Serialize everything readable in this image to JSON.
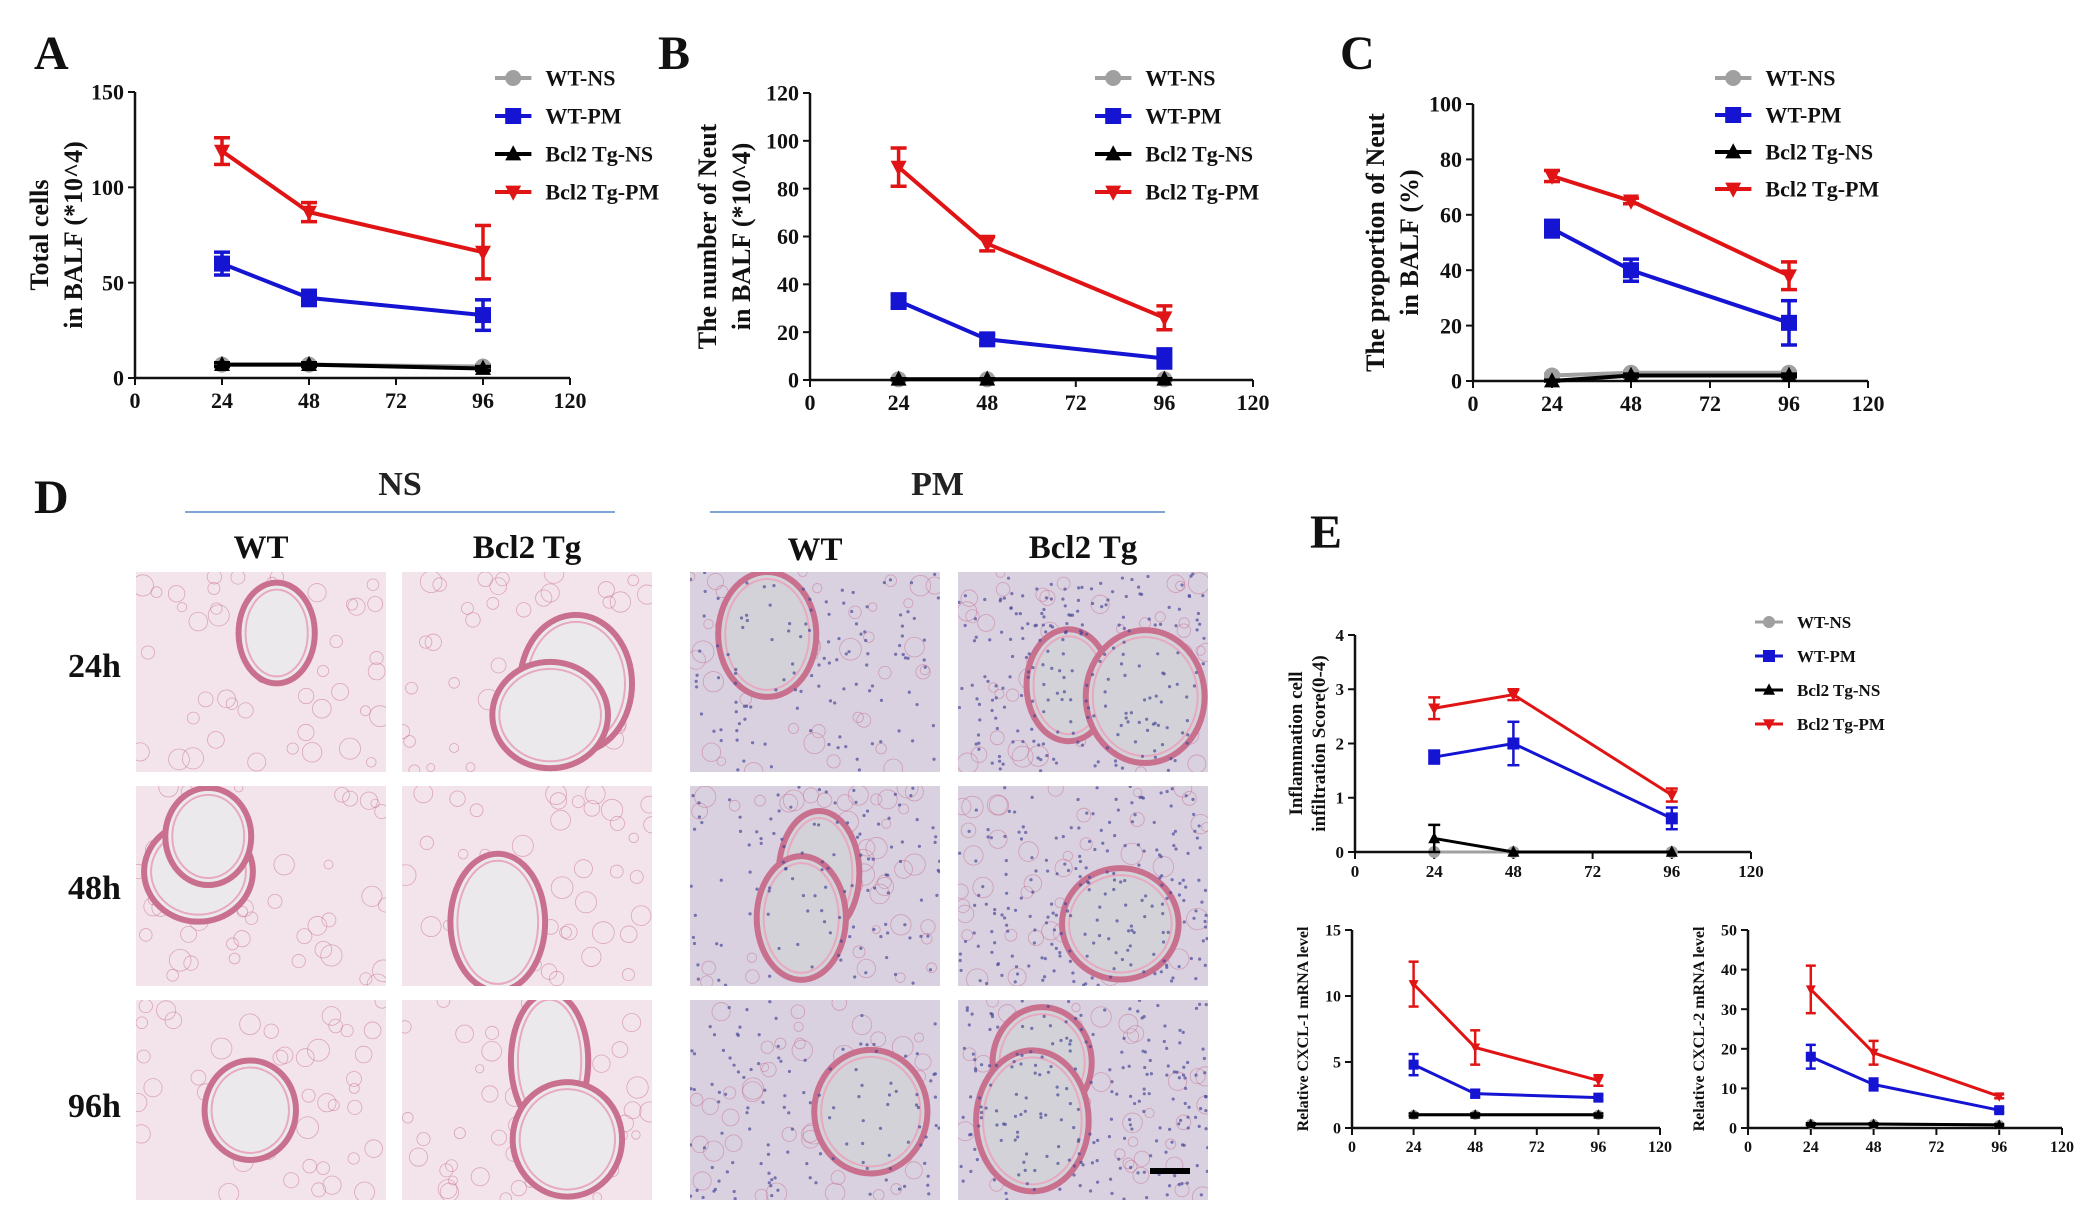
{
  "panel_letters": [
    "A",
    "B",
    "C",
    "D",
    "E"
  ],
  "legend_labels": [
    "WT-NS",
    "WT-PM",
    "Bcl2 Tg-NS",
    "Bcl2 Tg-PM"
  ],
  "series_colors": {
    "WT-NS": "#a0a0a0",
    "WT-PM": "#1414d2",
    "Bcl2 Tg-NS": "#000000",
    "Bcl2 Tg-PM": "#e01414"
  },
  "series_markers": {
    "WT-NS": "circle",
    "WT-PM": "square",
    "Bcl2 Tg-NS": "triangle-up",
    "Bcl2 Tg-PM": "triangle-down"
  },
  "chart_data": [
    {
      "id": "A",
      "type": "line",
      "ylabel": [
        "Total  cells",
        "in BALF (*10^4)"
      ],
      "xlabel": "",
      "xlim": [
        0,
        120
      ],
      "xticks": [
        0,
        24,
        48,
        72,
        96,
        120
      ],
      "ylim": [
        0,
        150
      ],
      "yticks": [
        0,
        50,
        100,
        150
      ],
      "x": [
        24,
        48,
        96
      ],
      "series": [
        {
          "name": "WT-NS",
          "values": [
            7,
            7,
            6
          ],
          "err": [
            1,
            1,
            1
          ]
        },
        {
          "name": "WT-PM",
          "values": [
            60,
            42,
            33
          ],
          "err": [
            6,
            4,
            8
          ]
        },
        {
          "name": "Bcl2 Tg-NS",
          "values": [
            7,
            7,
            5
          ],
          "err": [
            1,
            1,
            1
          ]
        },
        {
          "name": "Bcl2 Tg-PM",
          "values": [
            119,
            87,
            66
          ],
          "err": [
            7,
            5,
            14
          ]
        }
      ]
    },
    {
      "id": "B",
      "type": "line",
      "ylabel": [
        "The number of Neut",
        "in BALF (*10^4)"
      ],
      "xlabel": "",
      "xlim": [
        0,
        120
      ],
      "xticks": [
        0,
        24,
        48,
        72,
        96,
        120
      ],
      "ylim": [
        0,
        120
      ],
      "yticks": [
        0,
        20,
        40,
        60,
        80,
        100,
        120
      ],
      "x": [
        24,
        48,
        96
      ],
      "series": [
        {
          "name": "WT-NS",
          "values": [
            0.3,
            0.3,
            0.3
          ],
          "err": [
            0.2,
            0.2,
            0.2
          ]
        },
        {
          "name": "WT-PM",
          "values": [
            33,
            17,
            9
          ],
          "err": [
            3,
            2,
            4
          ]
        },
        {
          "name": "Bcl2 Tg-NS",
          "values": [
            0.3,
            0.3,
            0.3
          ],
          "err": [
            0.2,
            0.2,
            0.2
          ]
        },
        {
          "name": "Bcl2 Tg-PM",
          "values": [
            89,
            57,
            26
          ],
          "err": [
            8,
            3,
            5
          ]
        }
      ]
    },
    {
      "id": "C",
      "type": "line",
      "ylabel": [
        "The proportion of Neut",
        "in BALF (%)"
      ],
      "xlabel": "",
      "xlim": [
        0,
        120
      ],
      "xticks": [
        0,
        24,
        48,
        72,
        96,
        120
      ],
      "ylim": [
        0,
        100
      ],
      "yticks": [
        0,
        20,
        40,
        60,
        80,
        100
      ],
      "x": [
        24,
        48,
        96
      ],
      "series": [
        {
          "name": "WT-NS",
          "values": [
            2,
            3,
            3
          ],
          "err": [
            0.5,
            0.5,
            0.5
          ]
        },
        {
          "name": "WT-PM",
          "values": [
            55,
            40,
            21
          ],
          "err": [
            3,
            4,
            8
          ]
        },
        {
          "name": "Bcl2 Tg-NS",
          "values": [
            0,
            2,
            2
          ],
          "err": [
            0.3,
            0.5,
            0.5
          ]
        },
        {
          "name": "Bcl2 Tg-PM",
          "values": [
            74,
            65,
            38
          ],
          "err": [
            2,
            1,
            5
          ]
        }
      ]
    },
    {
      "id": "E1",
      "type": "line",
      "ylabel": [
        "Inflammation cell",
        "infiltration Score(0-4)"
      ],
      "xlabel": "",
      "xlim": [
        0,
        120
      ],
      "xticks": [
        0,
        24,
        48,
        72,
        96,
        120
      ],
      "ylim": [
        0,
        4
      ],
      "yticks": [
        0,
        1,
        2,
        3,
        4
      ],
      "x": [
        24,
        48,
        96
      ],
      "series": [
        {
          "name": "WT-NS",
          "values": [
            0,
            0,
            0
          ],
          "err": [
            0,
            0,
            0
          ]
        },
        {
          "name": "WT-PM",
          "values": [
            1.75,
            2.0,
            0.62
          ],
          "err": [
            0.12,
            0.4,
            0.2
          ]
        },
        {
          "name": "Bcl2 Tg-NS",
          "values": [
            0.25,
            0,
            0
          ],
          "err": [
            0.25,
            0,
            0
          ]
        },
        {
          "name": "Bcl2 Tg-PM",
          "values": [
            2.65,
            2.9,
            1.05
          ],
          "err": [
            0.2,
            0.1,
            0.12
          ]
        }
      ]
    },
    {
      "id": "E2",
      "type": "line",
      "ylabel": [
        "Relative CXCL-1 mRNA level"
      ],
      "xlabel": "",
      "xlim": [
        0,
        120
      ],
      "xticks": [
        0,
        24,
        48,
        72,
        96,
        120
      ],
      "ylim": [
        0,
        15
      ],
      "yticks": [
        0,
        5,
        10,
        15
      ],
      "x": [
        24,
        48,
        96
      ],
      "series": [
        {
          "name": "WT-NS",
          "values": [
            1,
            1,
            1
          ],
          "err": [
            0.1,
            0.1,
            0.1
          ]
        },
        {
          "name": "WT-PM",
          "values": [
            4.8,
            2.6,
            2.3
          ],
          "err": [
            0.8,
            0.3,
            0.2
          ]
        },
        {
          "name": "Bcl2 Tg-NS",
          "values": [
            1,
            1,
            1
          ],
          "err": [
            0.1,
            0.1,
            0.1
          ]
        },
        {
          "name": "Bcl2 Tg-PM",
          "values": [
            10.9,
            6.1,
            3.6
          ],
          "err": [
            1.7,
            1.3,
            0.4
          ]
        }
      ]
    },
    {
      "id": "E3",
      "type": "line",
      "ylabel": [
        "Relative CXCL-2 mRNA level"
      ],
      "xlabel": "",
      "xlim": [
        0,
        120
      ],
      "xticks": [
        0,
        24,
        48,
        72,
        96,
        120
      ],
      "ylim": [
        0,
        50
      ],
      "yticks": [
        0,
        10,
        20,
        30,
        40,
        50
      ],
      "x": [
        24,
        48,
        96
      ],
      "series": [
        {
          "name": "WT-NS",
          "values": [
            1,
            1,
            0.8
          ],
          "err": [
            0.2,
            0.2,
            0.2
          ]
        },
        {
          "name": "WT-PM",
          "values": [
            18,
            11,
            4.5
          ],
          "err": [
            3,
            1.5,
            0.5
          ]
        },
        {
          "name": "Bcl2 Tg-NS",
          "values": [
            1,
            1,
            0.8
          ],
          "err": [
            0.2,
            0.2,
            0.2
          ]
        },
        {
          "name": "Bcl2 Tg-PM",
          "values": [
            35,
            19,
            8
          ],
          "err": [
            6,
            3,
            0.5
          ]
        }
      ]
    }
  ],
  "histology": {
    "groups": [
      "NS",
      "PM"
    ],
    "columns": [
      "WT",
      "Bcl2 Tg",
      "WT",
      "Bcl2 Tg"
    ],
    "rows": [
      "24h",
      "48h",
      "96h"
    ],
    "tint_ns": "#f3e4ec",
    "tint_pm": "#d9d1e0",
    "tissue_stroke": "#c9708f",
    "nuclei_color": "#4a4a9a"
  }
}
